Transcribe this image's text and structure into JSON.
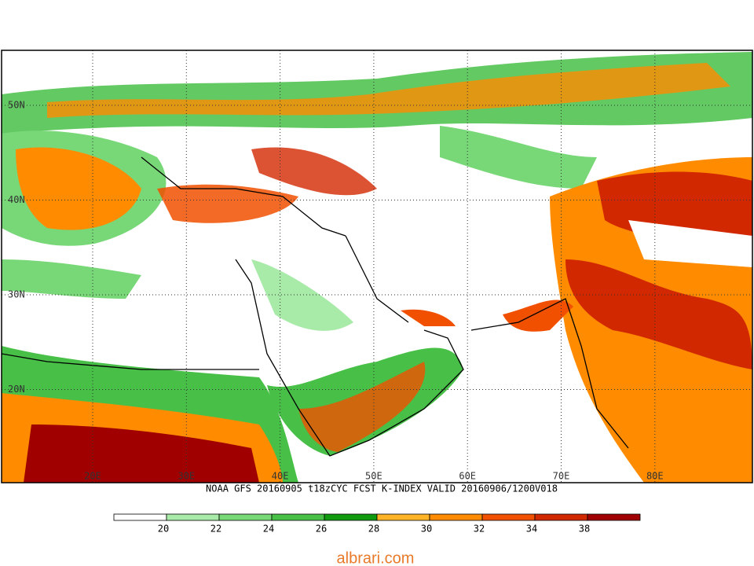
{
  "map": {
    "lat_labels": [
      "50N",
      "40N",
      "30N",
      "20N"
    ],
    "lon_labels": [
      "20E",
      "30E",
      "40E",
      "50E",
      "60E",
      "70E",
      "80E"
    ],
    "caption": "NOAA GFS 20160905 t18zCYC FCST K-INDEX   VALID 20160906/1200V018",
    "colorbar": {
      "labels": [
        "20",
        "22",
        "24",
        "26",
        "28",
        "30",
        "32",
        "34",
        "38"
      ],
      "colors": [
        "#ffffff",
        "#a8eaa8",
        "#78d878",
        "#48c048",
        "#109a10",
        "#ffb428",
        "#ff8c00",
        "#f05000",
        "#d22800",
        "#a00000"
      ]
    },
    "watermark": "albrari.com"
  }
}
